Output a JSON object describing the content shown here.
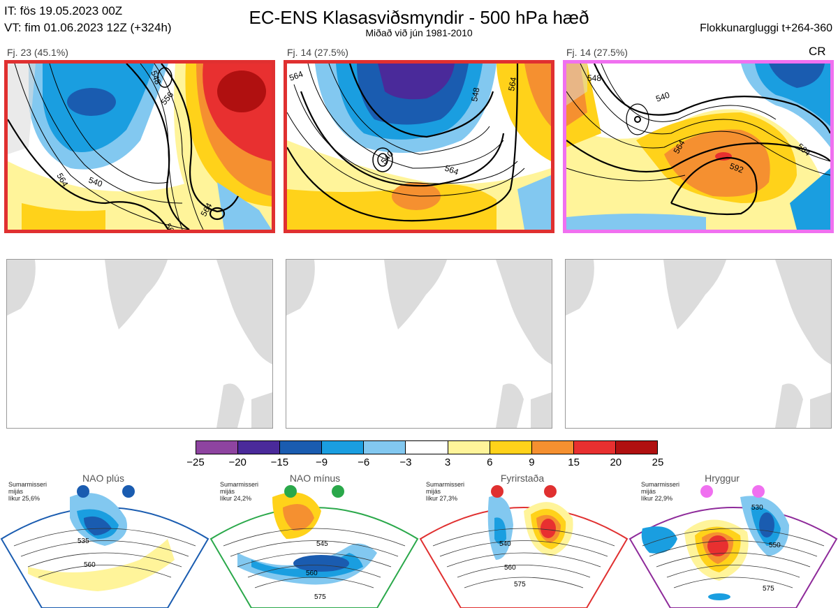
{
  "header": {
    "it_line": "IT: fös 19.05.2023 00Z",
    "vt_line": "VT: fim 01.06.2023 12Z  (+324h)",
    "title": "EC-ENS Klasasviðsmyndir - 500 hPa hæð",
    "subtitle": "Miðað við jún 1981-2010",
    "window": "Flokkunargluggi t+264-360"
  },
  "clusters": [
    {
      "label": "Fj. 23 (45.1%)",
      "border": "#e03030",
      "contours": [
        "540",
        "548",
        "556",
        "564",
        "564",
        "56"
      ]
    },
    {
      "label": "Fj. 14 (27.5%)",
      "border": "#e03030",
      "contours": [
        "564",
        "548",
        "540",
        "564",
        "564"
      ]
    },
    {
      "label": "Fj. 14 (27.5%)",
      "border": "#f070f0",
      "tag": "CR",
      "contours": [
        "548",
        "540",
        "564",
        "564",
        "592"
      ]
    }
  ],
  "colorbar": {
    "ticks": [
      "−25",
      "−20",
      "−15",
      "−9",
      "−6",
      "−3",
      "3",
      "6",
      "9",
      "15",
      "20",
      "25"
    ],
    "colors": [
      "#8e44a0",
      "#4a2a9a",
      "#1a5cb0",
      "#1a9ee0",
      "#82c8f0",
      "#ffffff",
      "#fff49a",
      "#ffd21a",
      "#f59030",
      "#e83030",
      "#b01010"
    ]
  },
  "regimes": [
    {
      "title": "NAO plús",
      "note": [
        "Sumarmisseri",
        "mijás",
        "líkur 25,6%"
      ],
      "edge": "#1a5cb0",
      "dot": "#1a5cb0",
      "contours": [
        "535",
        "560"
      ]
    },
    {
      "title": "NAO mínus",
      "note": [
        "Sumarmisseri",
        "mijás",
        "líkur 24,2%"
      ],
      "edge": "#2aa84a",
      "dot": "#2aa84a",
      "contours": [
        "545",
        "560",
        "575"
      ]
    },
    {
      "title": "Fyrirstaða",
      "note": [
        "Sumarmisseri",
        "mijás",
        "líkur 27,3%"
      ],
      "edge": "#e03030",
      "dot": "#e03030",
      "contours": [
        "540",
        "560",
        "575"
      ]
    },
    {
      "title": "Hryggur",
      "note": [
        "Sumarmisseri",
        "mijás",
        "líkur 22,9%"
      ],
      "edge": "#8e2a9a",
      "dot": "#f070f0",
      "contours": [
        "530",
        "550",
        "575"
      ]
    }
  ],
  "chart_data": {
    "type": "heatmap",
    "title": "EC-ENS Klasasviðsmyndir - 500 hPa hæð",
    "subtitle": "Miðað við jún 1981-2010",
    "clusters": [
      {
        "name": "Fj. 23",
        "members": 23,
        "probability_pct": 45.1
      },
      {
        "name": "Fj. 14",
        "members": 14,
        "probability_pct": 27.5
      },
      {
        "name": "Fj. 14",
        "members": 14,
        "probability_pct": 27.5,
        "regime_tag": "CR"
      }
    ],
    "colorbar_levels": [
      -25,
      -20,
      -15,
      -9,
      -6,
      -3,
      3,
      6,
      9,
      15,
      20,
      25
    ],
    "regimes": [
      {
        "name": "NAO plús",
        "probability_pct": 25.6
      },
      {
        "name": "NAO mínus",
        "probability_pct": 24.2
      },
      {
        "name": "Fyrirstaða",
        "probability_pct": 27.3
      },
      {
        "name": "Hryggur",
        "probability_pct": 22.9
      }
    ]
  }
}
